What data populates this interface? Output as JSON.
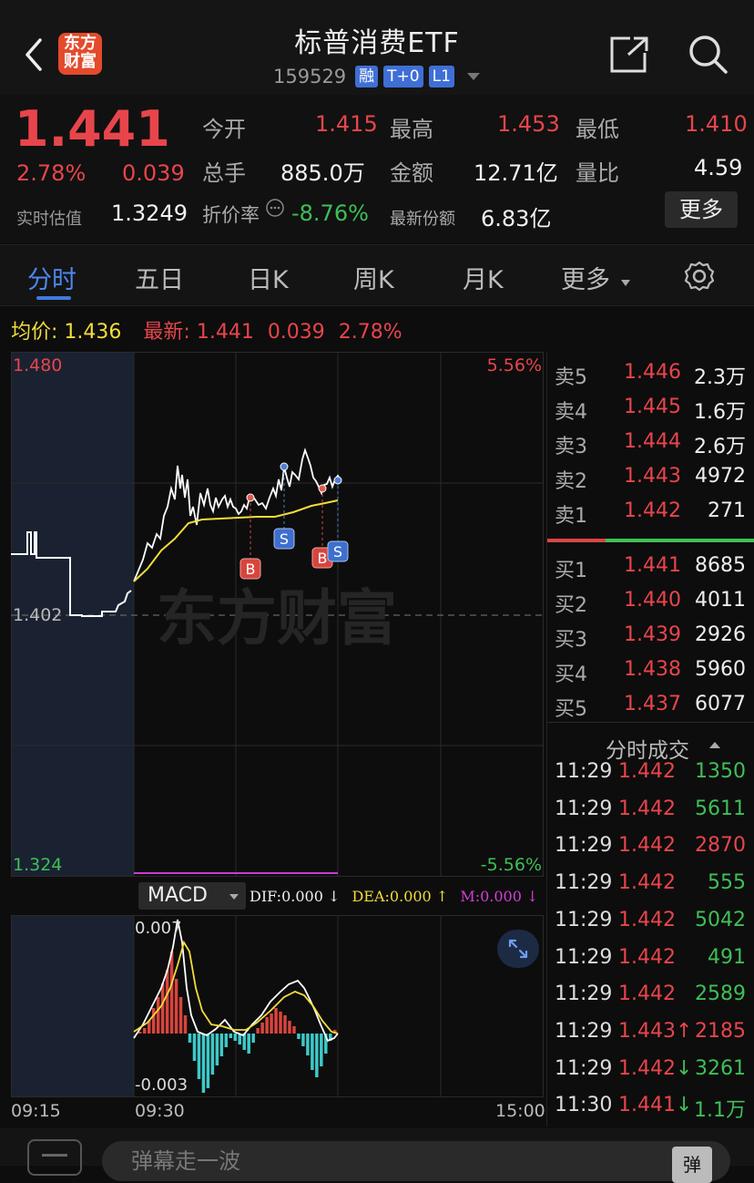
{
  "header": {
    "title": "标普消费ETF",
    "code": "159529",
    "tags": [
      "融",
      "T+0",
      "L1"
    ],
    "logo_text": "东方财富"
  },
  "quote": {
    "price": "1.441",
    "change_pct": "2.78%",
    "change": "0.039",
    "est_label": "实时估值",
    "est_value": "1.3249",
    "open_label": "今开",
    "open": "1.415",
    "high_label": "最高",
    "high": "1.453",
    "low_label": "最低",
    "low": "1.410",
    "vol_label": "总手",
    "vol": "885.0万",
    "amt_label": "金额",
    "amt": "12.71亿",
    "ratio_label": "量比",
    "ratio": "4.59",
    "discount_label": "折价率",
    "discount": "-8.76%",
    "shares_label": "最新份额",
    "shares": "6.83亿",
    "more": "更多"
  },
  "tabs": [
    {
      "label": "分时"
    },
    {
      "label": "五日"
    },
    {
      "label": "日K"
    },
    {
      "label": "周K"
    },
    {
      "label": "月K"
    },
    {
      "label": "更多"
    }
  ],
  "infoline": {
    "avg_label": "均价:",
    "avg": "1.436",
    "latest_label": "最新:",
    "latest": "1.441",
    "chg": "0.039",
    "pct": "2.78%"
  },
  "chart": {
    "ymax": "1.480",
    "ymin": "1.324",
    "ymid": "1.402",
    "pmax": "5.56%",
    "pmin": "-5.56%",
    "watermark": "东方财富",
    "markers": [
      "B",
      "S",
      "B",
      "S"
    ]
  },
  "macd": {
    "selector": "MACD",
    "dif": "DIF:0.000",
    "dea": "DEA:0.000",
    "m": "M:0.000",
    "ymax": "0.007",
    "ymin": "-0.003"
  },
  "time_axis": [
    "09:15",
    "09:30",
    "15:00"
  ],
  "orderbook": {
    "asks": [
      {
        "label": "卖5",
        "price": "1.446",
        "vol": "2.3万"
      },
      {
        "label": "卖4",
        "price": "1.445",
        "vol": "1.6万"
      },
      {
        "label": "卖3",
        "price": "1.444",
        "vol": "2.6万"
      },
      {
        "label": "卖2",
        "price": "1.443",
        "vol": "4972"
      },
      {
        "label": "卖1",
        "price": "1.442",
        "vol": "271"
      }
    ],
    "bids": [
      {
        "label": "买1",
        "price": "1.441",
        "vol": "8685"
      },
      {
        "label": "买2",
        "price": "1.440",
        "vol": "4011"
      },
      {
        "label": "买3",
        "price": "1.439",
        "vol": "2926"
      },
      {
        "label": "买4",
        "price": "1.438",
        "vol": "5960"
      },
      {
        "label": "买5",
        "price": "1.437",
        "vol": "6077"
      }
    ]
  },
  "trades_title": "分时成交",
  "trades": [
    {
      "time": "11:29",
      "price": "1.442",
      "vol": "1350",
      "dir": "",
      "color": "green"
    },
    {
      "time": "11:29",
      "price": "1.442",
      "vol": "5611",
      "dir": "",
      "color": "green"
    },
    {
      "time": "11:29",
      "price": "1.442",
      "vol": "2870",
      "dir": "",
      "color": "red"
    },
    {
      "time": "11:29",
      "price": "1.442",
      "vol": "555",
      "dir": "",
      "color": "green"
    },
    {
      "time": "11:29",
      "price": "1.442",
      "vol": "5042",
      "dir": "",
      "color": "green"
    },
    {
      "time": "11:29",
      "price": "1.442",
      "vol": "491",
      "dir": "",
      "color": "green"
    },
    {
      "time": "11:29",
      "price": "1.442",
      "vol": "2589",
      "dir": "",
      "color": "green"
    },
    {
      "time": "11:29",
      "price": "1.443",
      "vol": "2185",
      "dir": "↑",
      "color": "red"
    },
    {
      "time": "11:29",
      "price": "1.442",
      "vol": "3261",
      "dir": "↓",
      "color": "green"
    },
    {
      "time": "11:30",
      "price": "1.441",
      "vol": "1.1万",
      "dir": "↓",
      "color": "green"
    }
  ],
  "bottom": {
    "danmu_placeholder": "弹幕走一波",
    "danmu_btn": "弹"
  }
}
